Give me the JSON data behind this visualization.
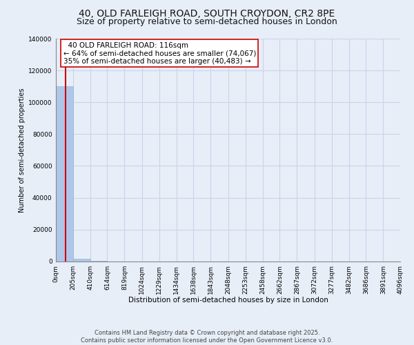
{
  "title_line1": "40, OLD FARLEIGH ROAD, SOUTH CROYDON, CR2 8PE",
  "title_line2": "Size of property relative to semi-detached houses in London",
  "xlabel": "Distribution of semi-detached houses by size in London",
  "ylabel": "Number of semi-detached properties",
  "property_size": 116,
  "property_name": "40 OLD FARLEIGH ROAD: 116sqm",
  "smaller_pct": 64,
  "smaller_count": 74067,
  "larger_pct": 35,
  "larger_count": 40483,
  "bar_color": "#aec6e8",
  "bar_edge_color": "#9bb8d4",
  "line_color": "#cc0000",
  "annotation_box_color": "#ffffff",
  "annotation_border_color": "#cc0000",
  "background_color": "#e8eef8",
  "grid_color": "#c8d4e8",
  "bins": [
    0,
    205,
    410,
    614,
    819,
    1024,
    1229,
    1434,
    1638,
    1843,
    2048,
    2253,
    2458,
    2662,
    2867,
    3072,
    3277,
    3482,
    3686,
    3891,
    4096
  ],
  "counts": [
    110000,
    1800,
    400,
    150,
    80,
    45,
    28,
    18,
    12,
    8,
    6,
    4,
    3,
    2,
    2,
    1,
    1,
    1,
    1,
    1
  ],
  "ylim": [
    0,
    140000
  ],
  "yticks": [
    0,
    20000,
    40000,
    60000,
    80000,
    100000,
    120000,
    140000
  ],
  "copyright_text": "Contains HM Land Registry data © Crown copyright and database right 2025.\nContains public sector information licensed under the Open Government Licence v3.0.",
  "title_fontsize": 10,
  "subtitle_fontsize": 9,
  "annotation_fontsize": 7.5,
  "tick_fontsize": 6.5,
  "label_fontsize": 7.5,
  "ylabel_fontsize": 7
}
